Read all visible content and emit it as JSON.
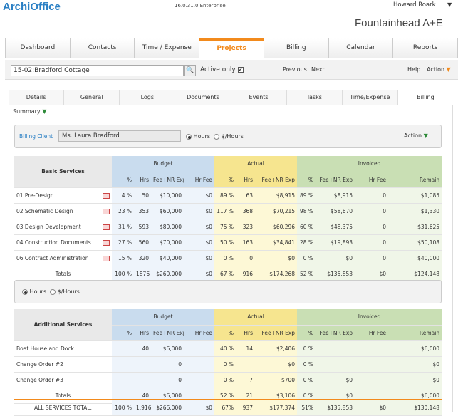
{
  "header": {
    "logo": "ArchiOffice",
    "version": "16.0.31.0 Enterprise",
    "user": "Howard Roark",
    "caret": "▼",
    "firm": "Fountainhead A+E"
  },
  "nav": {
    "items": [
      "Dashboard",
      "Contacts",
      "Time / Expense",
      "Projects",
      "Billing",
      "Calendar",
      "Reports"
    ],
    "active": "Projects"
  },
  "projectbar": {
    "project": "15-02:Bradford Cottage",
    "search_icon": "🔍",
    "active_only": "Active only",
    "checked": "✔",
    "previous": "Previous",
    "next": "Next",
    "help": "Help",
    "action": "Action",
    "caret": "▼"
  },
  "subtabs": [
    "Details",
    "General",
    "Logs",
    "Documents",
    "Events",
    "Tasks",
    "Time/Expense",
    "Billing"
  ],
  "summary": {
    "label": "Summary",
    "caret": "▼"
  },
  "client": {
    "label": "Billing Client",
    "value": "Ms. Laura Bradford",
    "hours": "Hours",
    "rate": "$/Hours",
    "action": "Action",
    "caret": "▼"
  },
  "groups": {
    "budget": "Budget",
    "actual": "Actual",
    "invoiced": "Invoiced"
  },
  "cols": {
    "pct": "%",
    "hrs": "Hrs",
    "fee": "Fee+NR Exp",
    "hrfee": "Hr Fee",
    "remain": "Remain"
  },
  "basic": {
    "title": "Basic Services",
    "rows": [
      [
        "01 Pre-Design",
        "4 %",
        "50",
        "$10,000",
        "$0",
        "89 %",
        "63",
        "$8,915",
        "89 %",
        "$8,915",
        "0",
        "$1,085"
      ],
      [
        "02 Schematic Design",
        "23 %",
        "353",
        "$60,000",
        "$0",
        "117 %",
        "368",
        "$70,215",
        "98 %",
        "$58,670",
        "0",
        "$1,330"
      ],
      [
        "03 Design Development",
        "31 %",
        "593",
        "$80,000",
        "$0",
        "75 %",
        "323",
        "$60,296",
        "60 %",
        "$48,375",
        "0",
        "$31,625"
      ],
      [
        "04 Construction Documents",
        "27 %",
        "560",
        "$70,000",
        "$0",
        "50 %",
        "163",
        "$34,841",
        "28 %",
        "$19,893",
        "0",
        "$50,108"
      ],
      [
        "06 Contract Administration",
        "15 %",
        "320",
        "$40,000",
        "$0",
        "0 %",
        "0",
        "$0",
        "0 %",
        "$0",
        "0",
        "$40,000"
      ]
    ],
    "totals": [
      "Totals",
      "100 %",
      "1876",
      "$260,000",
      "$0",
      "67 %",
      "916",
      "$174,268",
      "52 %",
      "$135,853",
      "$0",
      "$124,148"
    ]
  },
  "rateswitch": {
    "hours": "Hours",
    "rate": "$/Hours"
  },
  "additional": {
    "title": "Additional Services",
    "rows": [
      [
        "Boat House and Dock",
        "",
        "40",
        "$6,000",
        "",
        "40 %",
        "14",
        "$2,406",
        "0 %",
        "",
        "",
        "$6,000"
      ],
      [
        "Change Order #2",
        "",
        "",
        "0",
        "",
        "0 %",
        "",
        "$0",
        "0 %",
        "",
        "",
        "$0"
      ],
      [
        "Change Order #3",
        "",
        "",
        "0",
        "",
        "0 %",
        "7",
        "$700",
        "0 %",
        "$0",
        "",
        "$0"
      ]
    ],
    "totals": [
      "Totals",
      "",
      "40",
      "$6,000",
      "",
      "52 %",
      "21",
      "$3,106",
      "0 %",
      "$0",
      "",
      "$6,000"
    ]
  },
  "allservices": [
    "ALL SERVICES TOTAL:",
    "100 %",
    "1,916",
    "$266,000",
    "$0",
    "67%",
    "937",
    "$177,374",
    "51%",
    "$135,853",
    "$0",
    "$130,148"
  ]
}
